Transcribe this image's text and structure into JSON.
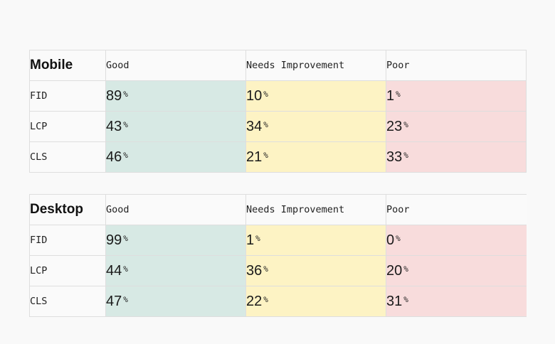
{
  "columns": {
    "good": "Good",
    "needs_improvement": "Needs Improvement",
    "poor": "Poor"
  },
  "percent_sign": "%",
  "colors": {
    "good": "#d7e9e4",
    "needs_improvement": "#fdf3c4",
    "poor": "#f8dcdc"
  },
  "tables": [
    {
      "device": "Mobile",
      "rows": [
        {
          "metric": "FID",
          "good": "89",
          "needs_improvement": "10",
          "poor": "1"
        },
        {
          "metric": "LCP",
          "good": "43",
          "needs_improvement": "34",
          "poor": "23"
        },
        {
          "metric": "CLS",
          "good": "46",
          "needs_improvement": "21",
          "poor": "33"
        }
      ]
    },
    {
      "device": "Desktop",
      "rows": [
        {
          "metric": "FID",
          "good": "99",
          "needs_improvement": "1",
          "poor": "0"
        },
        {
          "metric": "LCP",
          "good": "44",
          "needs_improvement": "36",
          "poor": "20"
        },
        {
          "metric": "CLS",
          "good": "47",
          "needs_improvement": "22",
          "poor": "31"
        }
      ]
    }
  ]
}
